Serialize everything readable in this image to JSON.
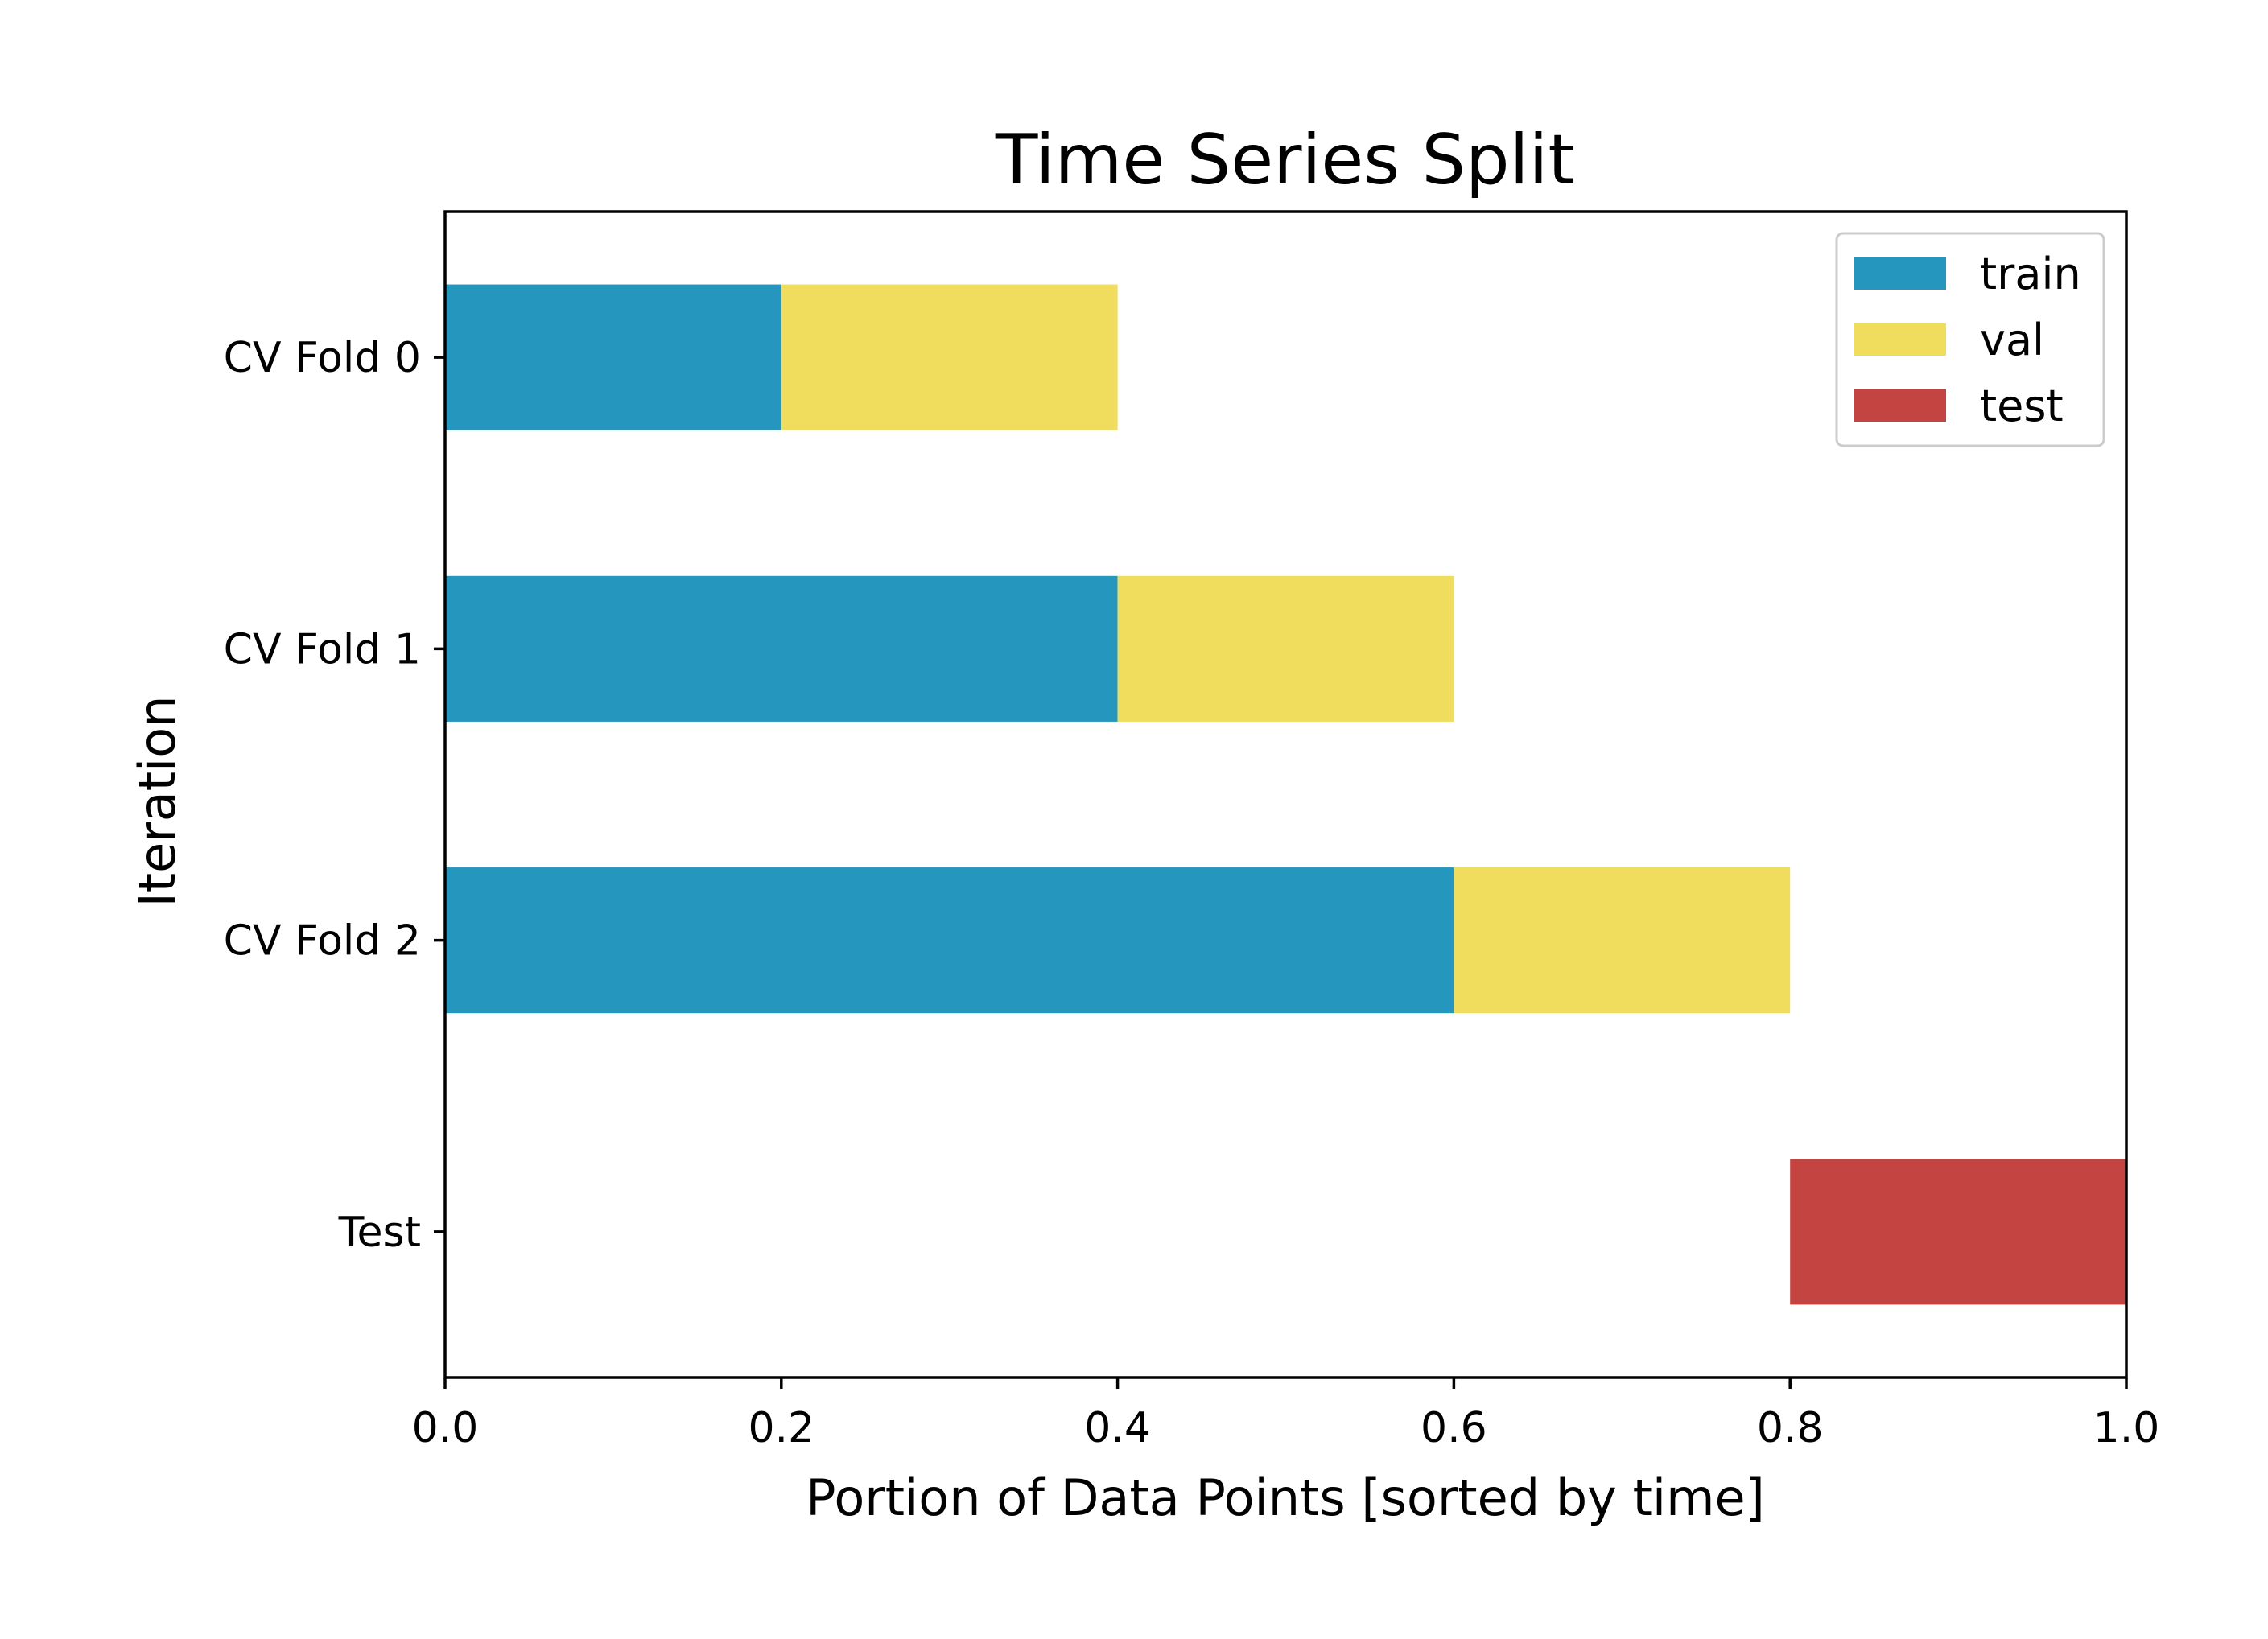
{
  "chart_data": {
    "type": "bar",
    "orientation": "horizontal",
    "stacked": true,
    "title": "Time Series Split",
    "xlabel": "Portion of Data Points [sorted by time]",
    "ylabel": "Iteration",
    "xlim": [
      0.0,
      1.0
    ],
    "x_ticks": [
      "0.0",
      "0.2",
      "0.4",
      "0.6",
      "0.8",
      "1.0"
    ],
    "categories": [
      "CV Fold 0",
      "CV Fold 1",
      "CV Fold 2",
      "Test"
    ],
    "series": [
      {
        "name": "train",
        "color": "#2596be",
        "segments": [
          [
            0.0,
            0.2
          ],
          [
            0.0,
            0.4
          ],
          [
            0.0,
            0.6
          ],
          null
        ]
      },
      {
        "name": "val",
        "color": "#f0dc5d",
        "segments": [
          [
            0.2,
            0.4
          ],
          [
            0.4,
            0.6
          ],
          [
            0.6,
            0.8
          ],
          null
        ]
      },
      {
        "name": "test",
        "color": "#c44441",
        "segments": [
          null,
          null,
          null,
          [
            0.8,
            1.0
          ]
        ]
      }
    ],
    "grid": false,
    "legend_position": "top-right"
  }
}
